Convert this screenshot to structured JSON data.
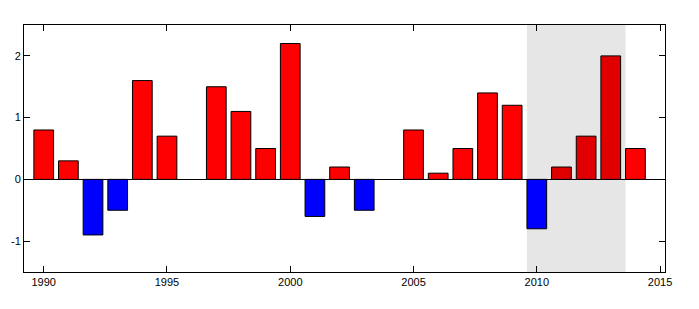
{
  "chart_data": {
    "type": "bar",
    "x": [
      1990,
      1991,
      1992,
      1993,
      1994,
      1995,
      1997,
      1998,
      1999,
      2000,
      2001,
      2002,
      2003,
      2005,
      2006,
      2007,
      2008,
      2009,
      2010,
      2011,
      2012,
      2013,
      2014
    ],
    "values": [
      0.8,
      0.3,
      -0.9,
      -0.5,
      1.6,
      0.7,
      1.5,
      1.1,
      0.5,
      2.2,
      -0.6,
      0.2,
      -0.5,
      0.8,
      0.1,
      0.5,
      1.4,
      1.2,
      -0.8,
      0.2,
      0.7,
      2.0,
      0.5
    ],
    "colors": [
      "#ff0000",
      "#ff0000",
      "#0000ff",
      "#0000ff",
      "#ff0000",
      "#ff0000",
      "#ff0000",
      "#ff0000",
      "#ff0000",
      "#ff0000",
      "#0000ff",
      "#ff0000",
      "#0000ff",
      "#ff0000",
      "#ff0000",
      "#ff0000",
      "#ff0000",
      "#ff0000",
      "#0000ff",
      "#e00000",
      "#e00000",
      "#e00000",
      "#ff0000"
    ],
    "xlim": [
      1989.2,
      2015.2
    ],
    "xticks": [
      1990,
      1995,
      2000,
      2005,
      2010,
      2015
    ],
    "ylim": [
      -1.5,
      2.5
    ],
    "yticks": [
      -1,
      0,
      1,
      2
    ],
    "highlight": {
      "x0": 2009.6,
      "x1": 2013.6,
      "color": "#e6e6e6"
    },
    "grid": false
  }
}
